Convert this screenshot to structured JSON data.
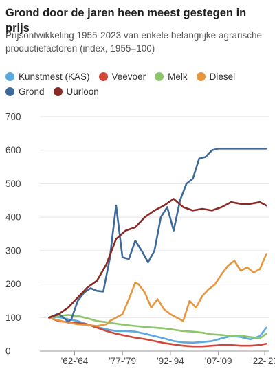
{
  "title": "Grond door de jaren heen meest gestegen in prijs",
  "subtitle": "Prijsontwikkeling 1955-2023 van enkele belangrijke agrarische productiefactoren (index, 1955=100)",
  "chart_data": {
    "type": "line",
    "title": "Grond door de jaren heen meest gestegen in prijs",
    "subtitle": "Prijsontwikkeling 1955-2023 van enkele belangrijke agrarische productiefactoren (index, 1955=100)",
    "xlabel": "",
    "ylabel": "",
    "ylim": [
      0,
      700
    ],
    "yticks": [
      0,
      100,
      200,
      300,
      400,
      500,
      600,
      700
    ],
    "xticks": [
      {
        "label": "'62-'64",
        "x": 1963
      },
      {
        "label": "'77-'79",
        "x": 1978
      },
      {
        "label": "'92-'94",
        "x": 1993
      },
      {
        "label": "'07-'09",
        "x": 2008
      },
      {
        "label": "'22-'23",
        "x": 2022.5
      }
    ],
    "grid": true,
    "legend_position": "top",
    "series": [
      {
        "name": "Kunstmest (KAS)",
        "color": "#5aa9e0",
        "x": [
          1955,
          1958,
          1961,
          1964,
          1967,
          1970,
          1973,
          1976,
          1979,
          1982,
          1985,
          1988,
          1991,
          1994,
          1997,
          2000,
          2003,
          2006,
          2009,
          2012,
          2015,
          2018,
          2021,
          2023
        ],
        "y": [
          100,
          102,
          95,
          90,
          80,
          72,
          65,
          60,
          60,
          58,
          52,
          45,
          38,
          30,
          26,
          25,
          27,
          30,
          38,
          45,
          42,
          35,
          45,
          70
        ]
      },
      {
        "name": "Veevoer",
        "color": "#d1473a",
        "x": [
          1955,
          1958,
          1961,
          1964,
          1967,
          1970,
          1973,
          1976,
          1979,
          1982,
          1985,
          1988,
          1991,
          1994,
          1997,
          2000,
          2003,
          2006,
          2009,
          2012,
          2015,
          2018,
          2021,
          2023
        ],
        "y": [
          100,
          90,
          86,
          84,
          80,
          70,
          60,
          52,
          46,
          40,
          36,
          30,
          24,
          20,
          16,
          14,
          14,
          16,
          18,
          18,
          16,
          16,
          18,
          22
        ]
      },
      {
        "name": "Melk",
        "color": "#8cc56a",
        "x": [
          1955,
          1958,
          1961,
          1964,
          1967,
          1970,
          1973,
          1976,
          1979,
          1982,
          1985,
          1988,
          1991,
          1994,
          1997,
          2000,
          2003,
          2006,
          2009,
          2012,
          2015,
          2018,
          2021,
          2023
        ],
        "y": [
          100,
          105,
          108,
          105,
          98,
          90,
          86,
          82,
          78,
          75,
          72,
          70,
          68,
          64,
          60,
          58,
          55,
          50,
          48,
          45,
          46,
          42,
          38,
          52
        ]
      },
      {
        "name": "Diesel",
        "color": "#e8963e",
        "x": [
          1955,
          1958,
          1961,
          1964,
          1967,
          1970,
          1973,
          1974,
          1976,
          1978,
          1980,
          1982,
          1983,
          1985,
          1987,
          1989,
          1991,
          1993,
          1995,
          1997,
          1999,
          2001,
          2003,
          2005,
          2007,
          2009,
          2011,
          2013,
          2015,
          2017,
          2019,
          2021,
          2023
        ],
        "y": [
          100,
          92,
          85,
          80,
          78,
          75,
          80,
          90,
          100,
          110,
          155,
          205,
          200,
          175,
          130,
          155,
          125,
          110,
          100,
          90,
          150,
          130,
          165,
          185,
          200,
          230,
          255,
          270,
          240,
          250,
          235,
          245,
          290
        ]
      },
      {
        "name": "Grond",
        "color": "#3e6a99",
        "x": [
          1955,
          1958,
          1961,
          1962,
          1964,
          1966,
          1968,
          1970,
          1972,
          1974,
          1976,
          1978,
          1980,
          1982,
          1984,
          1986,
          1988,
          1990,
          1992,
          1994,
          1996,
          1998,
          2000,
          2002,
          2004,
          2006,
          2008,
          2010,
          2012,
          2014,
          2016,
          2018,
          2020,
          2023
        ],
        "y": [
          100,
          112,
          88,
          95,
          150,
          175,
          188,
          180,
          178,
          275,
          435,
          280,
          275,
          330,
          300,
          265,
          300,
          400,
          430,
          360,
          450,
          500,
          515,
          575,
          580,
          600,
          605,
          605,
          605,
          605,
          605,
          605,
          605,
          605
        ]
      },
      {
        "name": "Uurloon",
        "color": "#8a2a26",
        "x": [
          1955,
          1958,
          1961,
          1964,
          1967,
          1970,
          1973,
          1976,
          1979,
          1982,
          1985,
          1988,
          1991,
          1994,
          1997,
          2000,
          2003,
          2006,
          2009,
          2012,
          2015,
          2018,
          2021,
          2023
        ],
        "y": [
          100,
          110,
          130,
          160,
          190,
          210,
          260,
          335,
          360,
          370,
          400,
          420,
          435,
          455,
          430,
          420,
          425,
          420,
          430,
          445,
          440,
          440,
          445,
          435
        ]
      }
    ]
  }
}
